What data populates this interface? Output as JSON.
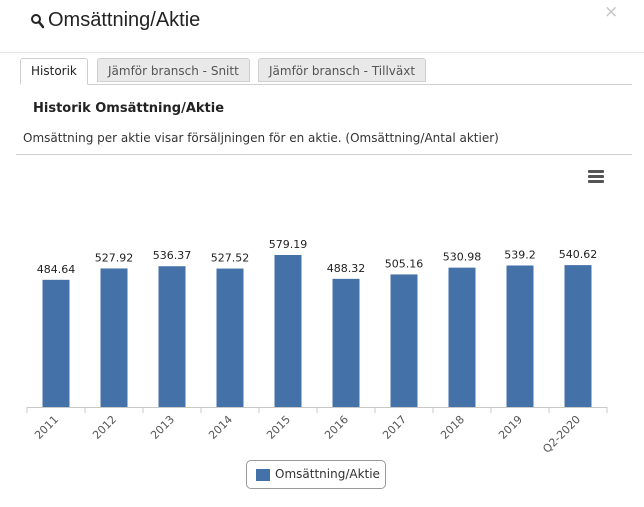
{
  "header": {
    "title": "Omsättning/Aktie",
    "close_glyph": "×"
  },
  "tabs": [
    {
      "label": "Historik",
      "active": true
    },
    {
      "label": "Jämför bransch - Snitt",
      "active": false
    },
    {
      "label": "Jämför bransch - Tillväxt",
      "active": false
    }
  ],
  "section": {
    "title": "Historik Omsättning/Aktie",
    "description": "Omsättning per aktie visar försäljningen för en aktie. (Omsättning/Antal aktier)"
  },
  "colors": {
    "bar": "#4471a8",
    "axis": "#c8c8c8"
  },
  "icons": {
    "search": "search-icon",
    "close": "close-icon",
    "menu": "hamburger-menu-icon"
  },
  "chart_data": {
    "type": "bar",
    "categories": [
      "2011",
      "2012",
      "2013",
      "2014",
      "2015",
      "2016",
      "2017",
      "2018",
      "2019",
      "Q2-2020"
    ],
    "series": [
      {
        "name": "Omsättning/Aktie",
        "values": [
          484.64,
          527.92,
          536.37,
          527.52,
          579.19,
          488.32,
          505.16,
          530.98,
          539.2,
          540.62
        ]
      }
    ],
    "data_labels": [
      "484.64",
      "527.92",
      "536.37",
      "527.52",
      "579.19",
      "488.32",
      "505.16",
      "530.98",
      "539.2",
      "540.62"
    ],
    "ylim": [
      0,
      600
    ],
    "grid": false,
    "legend": "bottom-center"
  }
}
